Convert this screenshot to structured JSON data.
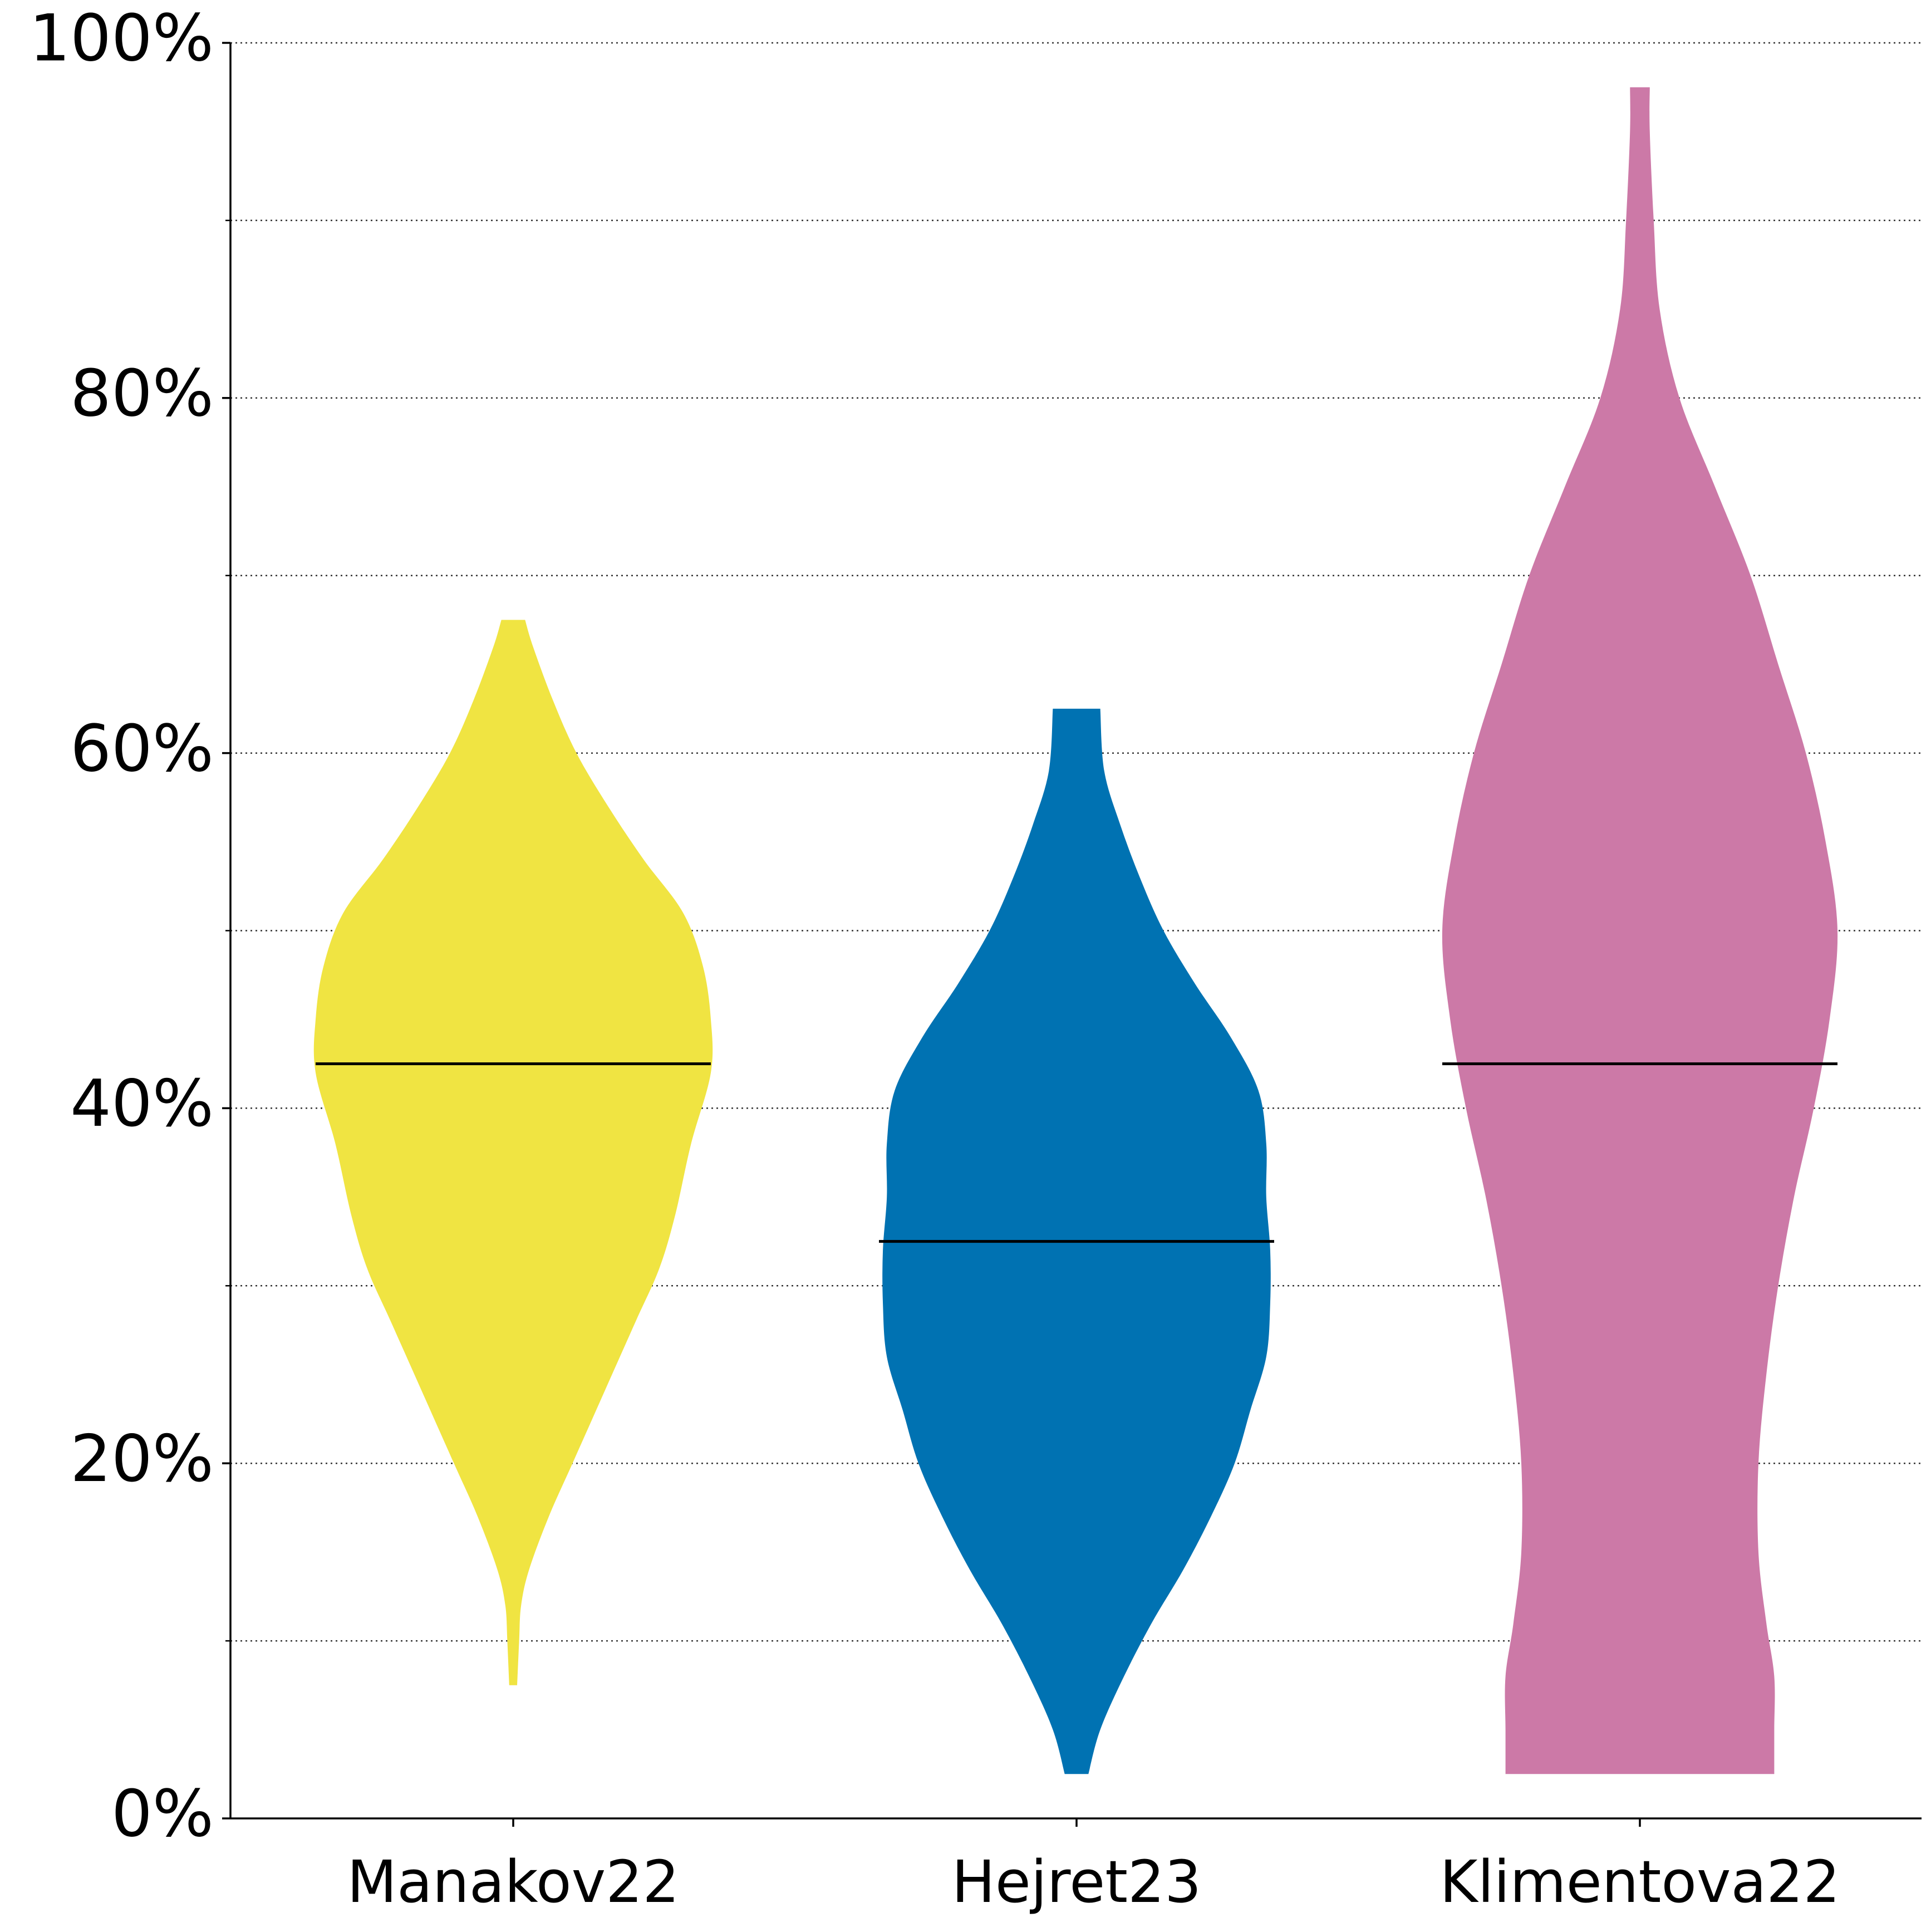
{
  "chart_data": {
    "type": "violin",
    "title": "",
    "xlabel": "",
    "ylabel": "",
    "ylim": [
      0,
      100
    ],
    "yticks": [
      0,
      20,
      40,
      60,
      80,
      100
    ],
    "ytick_labels": [
      "0%",
      "20%",
      "40%",
      "60%",
      "80%",
      "100%"
    ],
    "minor_yticks": [
      10,
      30,
      50,
      70,
      90
    ],
    "grid": "horizontal dotted at major and minor ticks",
    "categories": [
      "Manakov22",
      "Hejret23",
      "Klimentova22"
    ],
    "series": [
      {
        "category": "Manakov22",
        "color": "#F0E442",
        "min": 7.5,
        "max": 67.5,
        "median": 42.5,
        "density": [
          [
            7.5,
            0.01
          ],
          [
            10,
            0.015
          ],
          [
            12,
            0.02
          ],
          [
            14,
            0.04
          ],
          [
            17,
            0.09
          ],
          [
            20,
            0.15
          ],
          [
            24,
            0.23
          ],
          [
            28,
            0.31
          ],
          [
            31,
            0.37
          ],
          [
            34,
            0.41
          ],
          [
            38,
            0.45
          ],
          [
            42,
            0.5
          ],
          [
            45,
            0.5
          ],
          [
            48,
            0.48
          ],
          [
            51,
            0.43
          ],
          [
            54,
            0.33
          ],
          [
            57,
            0.24
          ],
          [
            60,
            0.16
          ],
          [
            63,
            0.1
          ],
          [
            66,
            0.05
          ],
          [
            67.5,
            0.03
          ]
        ]
      },
      {
        "category": "Hejret23",
        "color": "#0072B2",
        "min": 2.5,
        "max": 62.5,
        "median": 32.5,
        "density": [
          [
            2.5,
            0.03
          ],
          [
            5,
            0.06
          ],
          [
            8,
            0.12
          ],
          [
            11,
            0.19
          ],
          [
            14,
            0.27
          ],
          [
            17,
            0.34
          ],
          [
            20,
            0.4
          ],
          [
            23,
            0.44
          ],
          [
            26,
            0.48
          ],
          [
            29,
            0.49
          ],
          [
            32,
            0.49
          ],
          [
            35,
            0.48
          ],
          [
            38,
            0.48
          ],
          [
            41,
            0.46
          ],
          [
            44,
            0.39
          ],
          [
            47,
            0.3
          ],
          [
            50,
            0.22
          ],
          [
            53,
            0.16
          ],
          [
            56,
            0.11
          ],
          [
            59,
            0.07
          ],
          [
            62.5,
            0.06
          ]
        ]
      },
      {
        "category": "Klimentova22",
        "color": "#CC79A7",
        "min": 2.5,
        "max": 97.5,
        "median": 42.5,
        "density": [
          [
            2.5,
            0.34
          ],
          [
            5,
            0.34
          ],
          [
            8,
            0.34
          ],
          [
            11,
            0.32
          ],
          [
            15,
            0.3
          ],
          [
            20,
            0.3
          ],
          [
            25,
            0.32
          ],
          [
            30,
            0.35
          ],
          [
            35,
            0.39
          ],
          [
            40,
            0.44
          ],
          [
            45,
            0.48
          ],
          [
            50,
            0.5
          ],
          [
            55,
            0.47
          ],
          [
            60,
            0.42
          ],
          [
            65,
            0.35
          ],
          [
            70,
            0.28
          ],
          [
            75,
            0.19
          ],
          [
            80,
            0.1
          ],
          [
            85,
            0.05
          ],
          [
            90,
            0.035
          ],
          [
            95,
            0.025
          ],
          [
            97.5,
            0.025
          ]
        ]
      }
    ]
  }
}
